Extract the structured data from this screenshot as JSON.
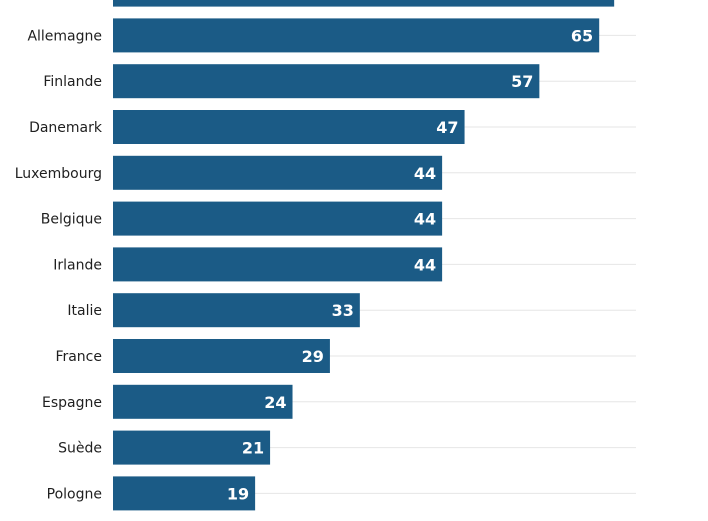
{
  "chart_data": {
    "type": "bar",
    "orientation": "horizontal",
    "categories": [
      "",
      "Allemagne",
      "Finlande",
      "Danemark",
      "Luxembourg",
      "Belgique",
      "Irlande",
      "Italie",
      "France",
      "Espagne",
      "Suède",
      "Pologne"
    ],
    "values": [
      67,
      65,
      57,
      47,
      44,
      44,
      44,
      33,
      29,
      24,
      21,
      19
    ],
    "value_labels": [
      "",
      "65",
      "57",
      "47",
      "44",
      "44",
      "44",
      "33",
      "29",
      "24",
      "21",
      "19"
    ],
    "bar_color": "#1b5b86",
    "grid_color": "#e6e6e6",
    "xlim": [
      0,
      70
    ],
    "grid": true,
    "legend": "none",
    "title": "",
    "xlabel": "",
    "ylabel": ""
  }
}
